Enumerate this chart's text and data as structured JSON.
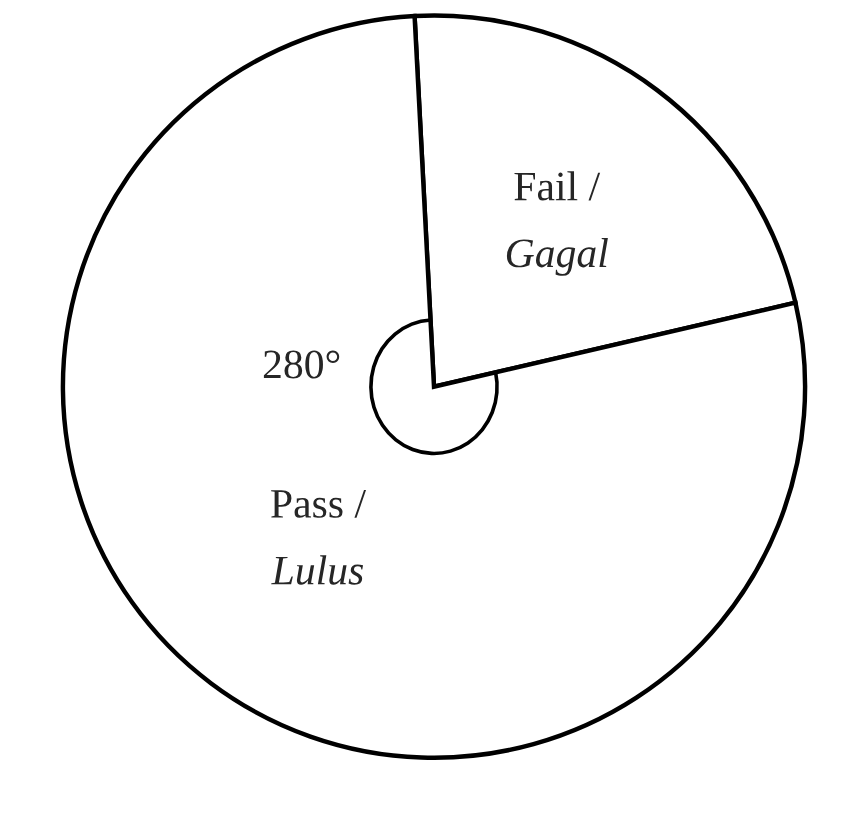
{
  "chart_data": {
    "type": "pie",
    "categories": [
      "Fail /\nGagal",
      "Pass /\nLulus"
    ],
    "values": [
      22.2,
      77.8
    ],
    "colors": [
      "#ffffff",
      "#ffffff"
    ],
    "annotations": [
      "280°"
    ],
    "legend": false
  }
}
